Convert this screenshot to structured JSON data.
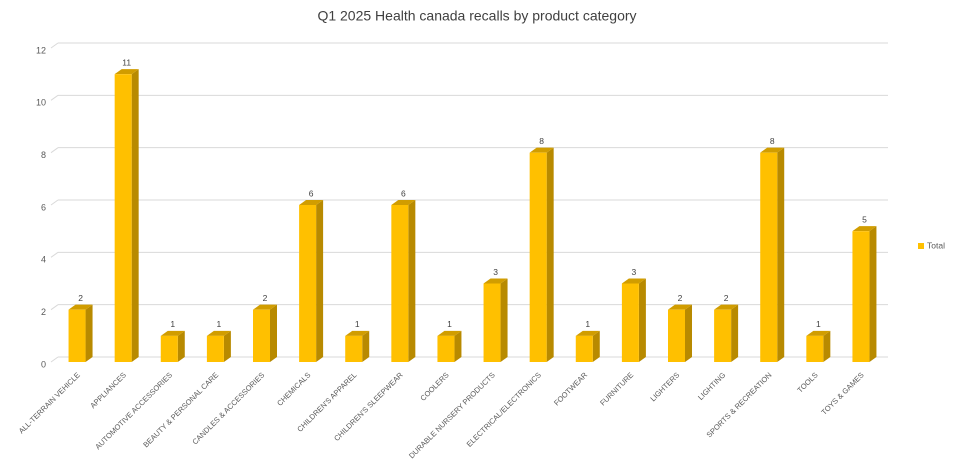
{
  "chart_data": {
    "type": "bar3d",
    "title": "Q1 2025 Health canada recalls by product category",
    "categories": [
      "ALL-TERRAIN VEHICLE",
      "APPLIANCES",
      "AUTOMOTIVE ACCESSORIES",
      "BEAUTY & PERSONAL CARE",
      "CANDLES & ACCESSORIES",
      "CHEMICALS",
      "CHILDREN'S APPAREL",
      "CHILDREN'S SLEEPWEAR",
      "COOLERS",
      "DURABLE NURSERY PRODUCTS",
      "ELECTRICAL/ELECTRONICS",
      "FOOTWEAR",
      "FURNITURE",
      "LIGHTERS",
      "LIGHTING",
      "SPORTS & RECREATION",
      "TOOLS",
      "TOYS & GAMES"
    ],
    "series": [
      {
        "name": "Total",
        "color": "#FFC000",
        "values": [
          2,
          11,
          1,
          1,
          2,
          6,
          1,
          6,
          1,
          3,
          8,
          1,
          3,
          2,
          2,
          8,
          1,
          5
        ]
      }
    ],
    "ylim": [
      0,
      12
    ],
    "yticks": [
      0,
      2,
      4,
      6,
      8,
      10,
      12
    ],
    "grid": true,
    "legend": "right"
  }
}
